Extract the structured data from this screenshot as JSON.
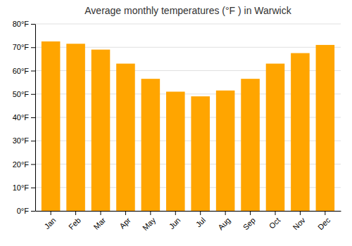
{
  "chart_data": {
    "type": "bar",
    "title": "Average monthly temperatures (°F ) in Warwick",
    "categories": [
      "Jan",
      "Feb",
      "Mar",
      "Apr",
      "May",
      "Jun",
      "Jul",
      "Aug",
      "Sep",
      "Oct",
      "Nov",
      "Dec"
    ],
    "values": [
      72.5,
      71.5,
      69.0,
      63.0,
      56.5,
      51.0,
      49.0,
      51.5,
      56.5,
      63.0,
      67.5,
      71.0
    ],
    "color": "#FFA500",
    "ylim": [
      0,
      80
    ],
    "yticks": [
      {
        "value": 0,
        "label": "0°F"
      },
      {
        "value": 10,
        "label": "10°F"
      },
      {
        "value": 20,
        "label": "20°F"
      },
      {
        "value": 30,
        "label": "30°F"
      },
      {
        "value": 40,
        "label": "40°F"
      },
      {
        "value": 50,
        "label": "50°F"
      },
      {
        "value": 60,
        "label": "60°F"
      },
      {
        "value": 70,
        "label": "70°F"
      },
      {
        "value": 80,
        "label": "80°F"
      }
    ],
    "grid": true
  }
}
